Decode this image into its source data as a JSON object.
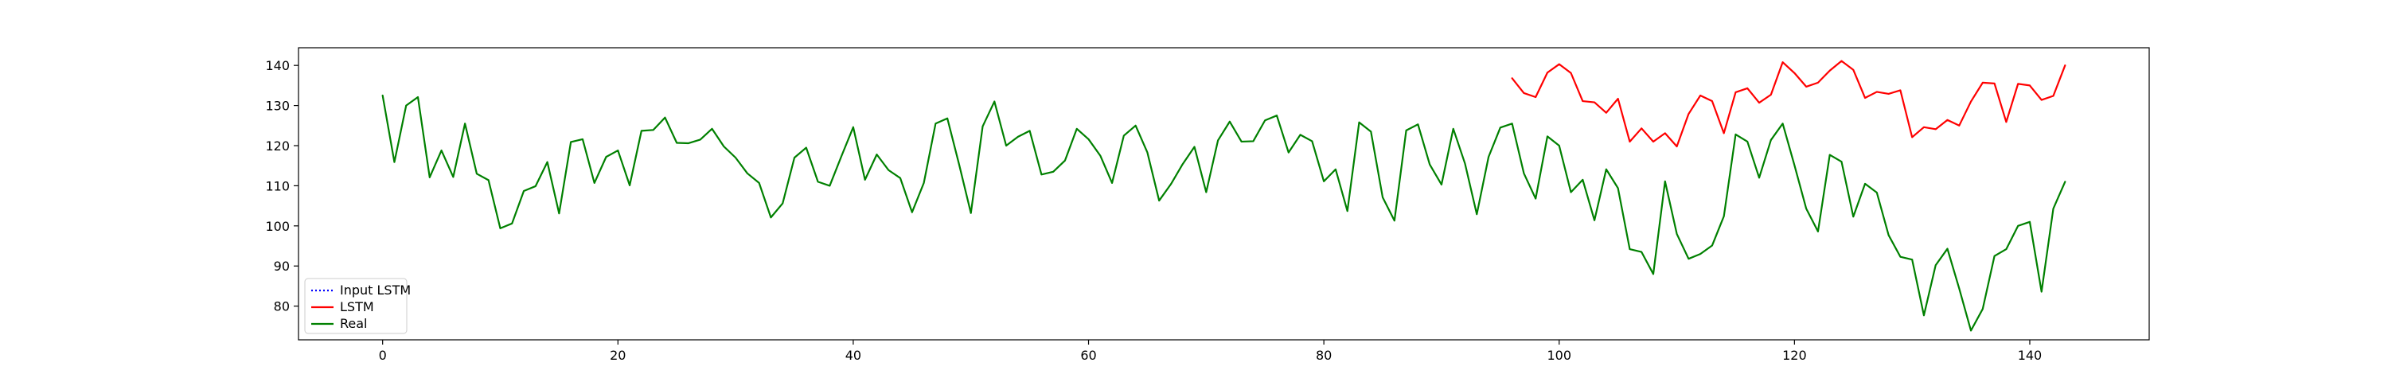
{
  "chart_data": {
    "type": "line",
    "title": "",
    "xlabel": "",
    "ylabel": "",
    "xlim": [
      -7.15,
      150.15
    ],
    "ylim": [
      71.6,
      144.4
    ],
    "x_ticks": [
      0,
      20,
      40,
      60,
      80,
      100,
      120,
      140
    ],
    "y_ticks": [
      80,
      90,
      100,
      110,
      120,
      130,
      140
    ],
    "grid": false,
    "legend_position": "lower-left",
    "series": [
      {
        "name": "Input LSTM",
        "color": "#0000ff",
        "style": "dotted",
        "x_start": 0,
        "values": []
      },
      {
        "name": "LSTM",
        "color": "#ff0000",
        "style": "solid",
        "x_start": 96,
        "values": [
          136.8,
          133.1,
          132.1,
          138.2,
          140.3,
          138.1,
          131.1,
          130.8,
          128.2,
          131.7,
          121.0,
          124.3,
          121.0,
          123.1,
          119.8,
          127.9,
          132.5,
          131.1,
          123.1,
          133.3,
          134.3,
          130.7,
          132.7,
          140.8,
          138.1,
          134.7,
          135.7,
          138.7,
          141.1,
          138.9,
          131.9,
          133.4,
          132.9,
          133.8,
          122.1,
          124.6,
          124.1,
          126.4,
          125.0,
          131.0,
          135.7,
          135.5,
          125.9,
          135.4,
          135.0,
          131.4,
          132.4,
          140.0
        ]
      },
      {
        "name": "Real",
        "color": "#008000",
        "style": "solid",
        "x_start": 0,
        "values": [
          132.5,
          115.9,
          130.0,
          132.1,
          112.1,
          118.8,
          112.2,
          125.5,
          113.0,
          111.4,
          99.4,
          100.6,
          108.7,
          109.9,
          115.9,
          103.1,
          120.9,
          121.6,
          110.7,
          117.2,
          118.8,
          110.1,
          123.7,
          123.9,
          127.0,
          120.7,
          120.6,
          121.5,
          124.2,
          119.8,
          117.0,
          113.1,
          110.7,
          102.1,
          105.6,
          117.0,
          119.5,
          111.0,
          110.0,
          117.4,
          124.6,
          111.5,
          117.8,
          113.9,
          111.9,
          103.4,
          110.7,
          125.5,
          126.8,
          115.3,
          103.2,
          124.8,
          131.0,
          120.0,
          122.2,
          123.7,
          112.8,
          113.5,
          116.3,
          124.2,
          121.6,
          117.5,
          110.7,
          122.5,
          125.0,
          118.3,
          106.3,
          110.4,
          115.4,
          119.7,
          108.4,
          121.3,
          126.0,
          121.0,
          121.1,
          126.3,
          127.5,
          118.3,
          122.7,
          121.1,
          111.1,
          114.1,
          103.7,
          125.8,
          123.5,
          107.1,
          101.3,
          123.8,
          125.3,
          115.3,
          110.3,
          124.2,
          115.5,
          102.9,
          117.2,
          124.5,
          125.5,
          113.1,
          106.8,
          122.3,
          120.0,
          108.4,
          111.5,
          101.4,
          114.1,
          109.4,
          94.2,
          93.5,
          88.0,
          111.1,
          98.0,
          91.8,
          93.0,
          95.1,
          102.4,
          122.8,
          121.0,
          112.0,
          121.4,
          125.5,
          115.1,
          104.3,
          98.6,
          117.7,
          116.0,
          102.3,
          110.5,
          108.3,
          97.7,
          92.3,
          91.6,
          77.7,
          90.2,
          94.3,
          84.4,
          73.9,
          79.3,
          92.5,
          94.2,
          100.0,
          101.0,
          83.6,
          104.3,
          111.0
        ]
      }
    ]
  }
}
